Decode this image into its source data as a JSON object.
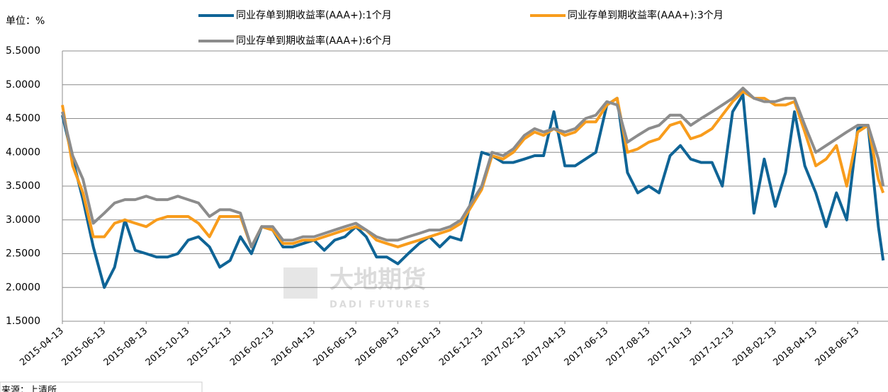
{
  "chart_data": {
    "type": "line",
    "unit_label": "单位：%",
    "source": "来源：上清所",
    "watermark": {
      "cn": "大地期货",
      "en": "DADI FUTURES"
    },
    "x": [
      "2015-04-13",
      "2015-04-28",
      "2015-05-13",
      "2015-05-28",
      "2015-06-13",
      "2015-06-28",
      "2015-07-13",
      "2015-07-28",
      "2015-08-13",
      "2015-08-28",
      "2015-09-13",
      "2015-09-28",
      "2015-10-13",
      "2015-10-28",
      "2015-11-13",
      "2015-11-28",
      "2015-12-13",
      "2015-12-28",
      "2016-01-13",
      "2016-01-28",
      "2016-02-13",
      "2016-02-28",
      "2016-03-13",
      "2016-03-28",
      "2016-04-13",
      "2016-04-28",
      "2016-05-13",
      "2016-05-28",
      "2016-06-13",
      "2016-06-28",
      "2016-07-13",
      "2016-07-28",
      "2016-08-13",
      "2016-08-28",
      "2016-09-13",
      "2016-09-28",
      "2016-10-13",
      "2016-10-28",
      "2016-11-13",
      "2016-11-28",
      "2016-12-13",
      "2016-12-28",
      "2017-01-13",
      "2017-01-28",
      "2017-02-13",
      "2017-02-28",
      "2017-03-13",
      "2017-03-28",
      "2017-04-13",
      "2017-04-28",
      "2017-05-13",
      "2017-05-28",
      "2017-06-13",
      "2017-06-28",
      "2017-07-13",
      "2017-07-28",
      "2017-08-13",
      "2017-08-28",
      "2017-09-13",
      "2017-09-28",
      "2017-10-13",
      "2017-10-28",
      "2017-11-13",
      "2017-11-28",
      "2017-12-13",
      "2017-12-28",
      "2018-01-13",
      "2018-01-28",
      "2018-02-13",
      "2018-02-28",
      "2018-03-13",
      "2018-03-28",
      "2018-04-13",
      "2018-04-28",
      "2018-05-13",
      "2018-05-28",
      "2018-06-13",
      "2018-06-28",
      "2018-07-13",
      "2018-07-20"
    ],
    "series": [
      {
        "name": "同业存单到期收益率(AAA+):1个月",
        "color": "#0f6496",
        "values": [
          4.55,
          3.9,
          3.3,
          2.6,
          2.0,
          2.3,
          3.0,
          2.55,
          2.5,
          2.45,
          2.45,
          2.5,
          2.7,
          2.75,
          2.6,
          2.3,
          2.4,
          2.75,
          2.5,
          2.9,
          2.85,
          2.6,
          2.6,
          2.65,
          2.7,
          2.55,
          2.7,
          2.75,
          2.9,
          2.75,
          2.45,
          2.45,
          2.35,
          2.5,
          2.65,
          2.75,
          2.6,
          2.75,
          2.7,
          3.3,
          4.0,
          3.95,
          3.85,
          3.85,
          3.9,
          3.95,
          3.95,
          4.6,
          3.8,
          3.8,
          3.9,
          4.0,
          4.7,
          4.8,
          3.7,
          3.4,
          3.5,
          3.4,
          3.95,
          4.1,
          3.9,
          3.85,
          3.85,
          3.5,
          4.6,
          4.85,
          3.1,
          3.9,
          3.2,
          3.7,
          4.6,
          3.8,
          3.4,
          2.9,
          3.4,
          3.0,
          4.35,
          4.4,
          2.9,
          2.4
        ]
      },
      {
        "name": "同业存单到期收益率(AAA+):3个月",
        "color": "#f89c1c",
        "values": [
          4.7,
          3.8,
          3.4,
          2.75,
          2.75,
          2.95,
          3.0,
          2.95,
          2.9,
          3.0,
          3.05,
          3.05,
          3.05,
          2.95,
          2.75,
          3.05,
          3.05,
          3.05,
          2.6,
          2.9,
          2.85,
          2.65,
          2.65,
          2.7,
          2.7,
          2.75,
          2.8,
          2.85,
          2.9,
          2.85,
          2.7,
          2.65,
          2.6,
          2.65,
          2.7,
          2.75,
          2.8,
          2.85,
          2.95,
          3.2,
          3.45,
          3.95,
          3.9,
          4.0,
          4.2,
          4.3,
          4.25,
          4.35,
          4.25,
          4.3,
          4.45,
          4.45,
          4.7,
          4.8,
          4.0,
          4.05,
          4.15,
          4.2,
          4.4,
          4.45,
          4.2,
          4.25,
          4.35,
          4.55,
          4.75,
          4.9,
          4.8,
          4.8,
          4.7,
          4.7,
          4.75,
          4.3,
          3.8,
          3.9,
          4.1,
          3.5,
          4.3,
          4.4,
          3.6,
          3.4
        ]
      },
      {
        "name": "同业存单到期收益率(AAA+):6个月",
        "color": "#8c8c8c",
        "values": [
          4.6,
          3.95,
          3.6,
          2.95,
          3.1,
          3.25,
          3.3,
          3.3,
          3.35,
          3.3,
          3.3,
          3.35,
          3.3,
          3.25,
          3.05,
          3.15,
          3.15,
          3.1,
          2.6,
          2.9,
          2.9,
          2.7,
          2.7,
          2.75,
          2.75,
          2.8,
          2.85,
          2.9,
          2.95,
          2.85,
          2.75,
          2.7,
          2.7,
          2.75,
          2.8,
          2.85,
          2.85,
          2.9,
          3.0,
          3.25,
          3.5,
          4.0,
          3.95,
          4.05,
          4.25,
          4.35,
          4.3,
          4.35,
          4.3,
          4.35,
          4.5,
          4.55,
          4.75,
          4.7,
          4.15,
          4.25,
          4.35,
          4.4,
          4.55,
          4.55,
          4.4,
          4.5,
          4.6,
          4.7,
          4.8,
          4.95,
          4.8,
          4.75,
          4.75,
          4.8,
          4.8,
          4.4,
          4.0,
          4.1,
          4.2,
          4.3,
          4.4,
          4.4,
          3.9,
          3.5
        ]
      }
    ],
    "xlim": [
      "2015-04-13",
      "2018-07-27"
    ],
    "xticks": [
      "2015-04-13",
      "2015-06-13",
      "2015-08-13",
      "2015-10-13",
      "2015-12-13",
      "2016-02-13",
      "2016-04-13",
      "2016-06-13",
      "2016-08-13",
      "2016-10-13",
      "2016-12-13",
      "2017-02-13",
      "2017-04-13",
      "2017-06-13",
      "2017-08-13",
      "2017-10-13",
      "2017-12-13",
      "2018-02-13",
      "2018-04-13",
      "2018-06-13"
    ],
    "ylim": [
      1.5,
      5.5
    ],
    "yticks": [
      {
        "value": 1.5,
        "label": "1.5000"
      },
      {
        "value": 2,
        "label": "2.0000"
      },
      {
        "value": 2.5,
        "label": "2.5000"
      },
      {
        "value": 3,
        "label": "3.0000"
      },
      {
        "value": 3.5,
        "label": "3.5000"
      },
      {
        "value": 4,
        "label": "4.0000"
      },
      {
        "value": 4.5,
        "label": "4.5000"
      },
      {
        "value": 5,
        "label": "5.0000"
      },
      {
        "value": 5.5,
        "label": "5.5000"
      }
    ],
    "grid": true,
    "legend": "top"
  }
}
